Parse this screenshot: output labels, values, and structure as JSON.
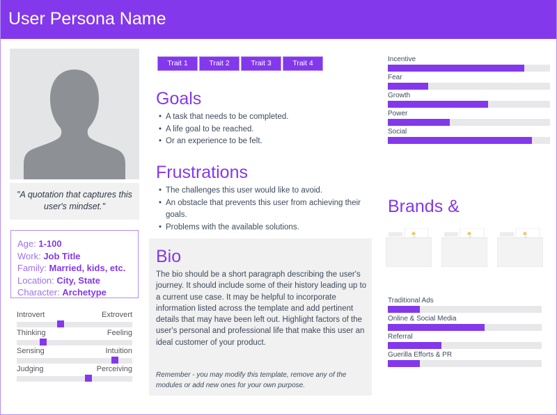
{
  "header": {
    "title": "User Persona Name"
  },
  "colors": {
    "accent": "#8338ec",
    "panel": "#f1f1f1",
    "track": "#e8e8ea"
  },
  "quote": "\"A quotation that captures this user's mindset.\"",
  "info": [
    {
      "label": "Age: ",
      "value": "1-100"
    },
    {
      "label": "Work: ",
      "value": "Job Title"
    },
    {
      "label": "Family: ",
      "value": "Married, kids, etc."
    },
    {
      "label": "Location: ",
      "value": "City, State"
    },
    {
      "label": "Character: ",
      "value": "Archetype"
    }
  ],
  "personality": [
    {
      "left": "Introvert",
      "right": "Extrovert",
      "value": 0.38
    },
    {
      "left": "Thinking",
      "right": "Feeling",
      "value": 0.23
    },
    {
      "left": "Sensing",
      "right": "Intuition",
      "value": 0.85
    },
    {
      "left": "Judging",
      "right": "Perceiving",
      "value": 0.62
    }
  ],
  "traits": [
    "Trait 1",
    "Trait 2",
    "Trait 3",
    "Trait 4"
  ],
  "goals": {
    "title": "Goals",
    "items": [
      "A task that needs to be completed.",
      "A life goal to be reached.",
      "Or an experience to be felt."
    ]
  },
  "frustrations": {
    "title": "Frustrations",
    "items": [
      "The challenges this user would like to avoid.",
      "An obstacle that prevents this user from achieving their goals.",
      "Problems with the available solutions."
    ]
  },
  "bio": {
    "title": "Bio",
    "text": "The bio should be a short paragraph describing the user's journey. It should include some of their history leading up to a current use case. It may be helpful to incorporate information listed across the template and add pertinent details that may have been left out. Highlight factors of the user's personal and professional life that make this user an ideal customer of your product.",
    "note": "Remember - you may modify this template, remove any of the modules or add new ones for your own purpose."
  },
  "motivations": [
    {
      "label": "Incentive",
      "value": 84
    },
    {
      "label": "Fear",
      "value": 25
    },
    {
      "label": "Growth",
      "value": 62
    },
    {
      "label": "Power",
      "value": 38
    },
    {
      "label": "Social",
      "value": 89
    }
  ],
  "brands": {
    "title": "Brands &",
    "logos": 3
  },
  "channels": [
    {
      "label": "Traditional Ads",
      "value": 21
    },
    {
      "label": "Online & Social Media",
      "value": 63
    },
    {
      "label": "Referral",
      "value": 35
    },
    {
      "label": "Guerilla Efforts & PR",
      "value": 21
    }
  ]
}
